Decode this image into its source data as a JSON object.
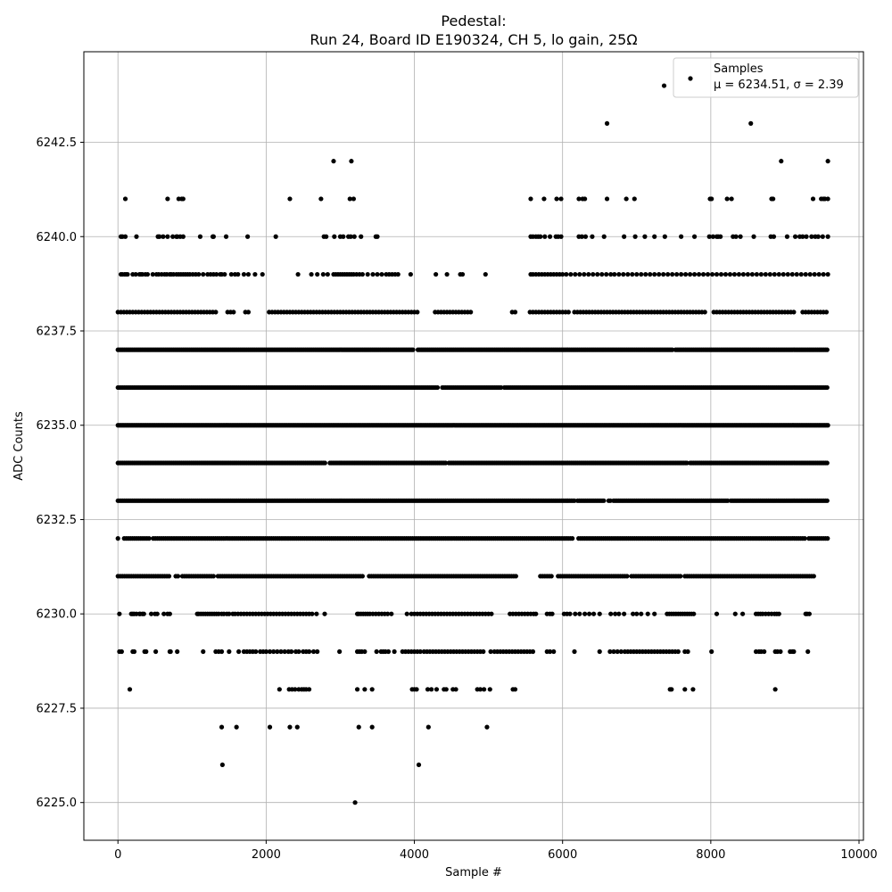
{
  "chart_data": {
    "type": "scatter",
    "title": "Pedestal:",
    "subtitle": "Run 24, Board ID E190324, CH 5, lo gain, 25Ω",
    "xlabel": "Sample #",
    "ylabel": "ADC Counts",
    "xlim": [
      -460,
      10060
    ],
    "ylim": [
      6224.0,
      6244.9
    ],
    "x_ticks": [
      0,
      2000,
      4000,
      6000,
      8000,
      10000
    ],
    "x_tick_labels": [
      "0",
      "2000",
      "4000",
      "6000",
      "8000",
      "10000"
    ],
    "y_ticks": [
      6225.0,
      6227.5,
      6230.0,
      6232.5,
      6235.0,
      6237.5,
      6240.0,
      6242.5
    ],
    "y_tick_labels": [
      "6225.0",
      "6227.5",
      "6230.0",
      "6232.5",
      "6235.0",
      "6237.5",
      "6240.0",
      "6242.5"
    ],
    "grid": true,
    "legend": {
      "placement": "top-right",
      "label_line1": "Samples",
      "label_line2": "μ = 6234.51, σ = 2.39"
    },
    "marker_color": "#000000",
    "series": [
      {
        "name": "Samples",
        "levels": [
          {
            "y": 6244,
            "x": [
              7370
            ]
          },
          {
            "y": 6243,
            "x": [
              6600,
              8540
            ]
          },
          {
            "y": 6242,
            "x": [
              2910,
              3150,
              8950,
              9580
            ]
          },
          {
            "y": 6241,
            "x": [
              100,
              670,
              820,
              860,
              880,
              2320,
              2740,
              3130,
              3180,
              5570,
              5750,
              5920,
              5980,
              6220,
              6270,
              6300,
              6600,
              6860,
              6970,
              7990,
              8010,
              8220,
              8280,
              8820,
              8840,
              9380,
              9490,
              9520,
              9540,
              9580
            ]
          },
          {
            "y": 6240,
            "x": [
              40,
              60,
              100,
              250,
              540,
              560,
              610,
              670,
              740,
              790,
              800,
              840,
              880,
              1110,
              1280,
              1290,
              1460,
              1750,
              2130,
              2780,
              2810,
              2920,
              3000,
              3040,
              3110,
              3140,
              3190,
              3280,
              3480,
              3500,
              5570,
              5600,
              5640,
              5670,
              5700,
              5760,
              5830,
              5910,
              5940,
              5980,
              6220,
              6260,
              6310,
              6400,
              6560,
              6830,
              6980,
              7110,
              7240,
              7380,
              7600,
              7780,
              7980,
              8030,
              8080,
              8100,
              8130,
              8300,
              8340,
              8400,
              8580,
              8810,
              8850,
              9030,
              9140,
              9200,
              9240,
              9290,
              9360,
              9410,
              9450,
              9510,
              9580
            ]
          },
          {
            "y": 6239,
            "x": [
              40,
              60,
              90,
              110,
              130,
              200,
              240,
              290,
              310,
              330,
              370,
              400,
              470,
              520,
              550,
              590,
              630,
              660,
              700,
              720,
              750,
              790,
              820,
              850,
              880,
              910,
              940,
              970,
              1010,
              1050,
              1090,
              1150,
              1210,
              1250,
              1290,
              1330,
              1380,
              1400,
              1440,
              1530,
              1580,
              1620,
              1700,
              1760,
              1850,
              1950,
              2430,
              2610,
              2690,
              2770,
              2830,
              2910,
              2940,
              2970,
              3000,
              3030,
              3060,
              3090,
              3120,
              3150,
              3180,
              3220,
              3260,
              3300,
              3370,
              3440,
              3500,
              3560,
              3620,
              3660,
              3700,
              3740,
              3780,
              3950,
              4290,
              4440,
              4620,
              4650,
              4960,
              5570,
              5600,
              5640,
              5680,
              5720,
              5760,
              5800,
              5840,
              5880,
              5920,
              5960,
              6000,
              6050,
              6110,
              6170,
              6230,
              6290,
              6350,
              6410,
              6470,
              6530,
              6590,
              6650,
              6700,
              6760,
              6820,
              6880,
              6940,
              7000,
              7060,
              7120,
              7180,
              7240,
              7300,
              7360,
              7420,
              7480,
              7540,
              7600,
              7660,
              7720,
              7780,
              7840,
              7900,
              7960,
              8020,
              8080,
              8140,
              8200,
              8260,
              8320,
              8380,
              8440,
              8500,
              8560,
              8620,
              8680,
              8740,
              8800,
              8860,
              8920,
              8980,
              9040,
              9100,
              9160,
              9220,
              9280,
              9340,
              9400,
              9460,
              9520,
              9580
            ]
          },
          {
            "y": 6238,
            "step": 40,
            "gaps": [
              [
                1340,
                1440
              ],
              [
                1600,
                1700
              ],
              [
                1800,
                2000
              ],
              [
                4050,
                4250
              ],
              [
                4800,
                5300
              ],
              [
                5400,
                5550
              ],
              [
                6100,
                6150
              ],
              [
                7950,
                8000
              ],
              [
                9150,
                9200
              ]
            ]
          },
          {
            "y": 6237,
            "step": 22,
            "gaps": [
              [
                4000,
                4030
              ],
              [
                7500,
                7520
              ]
            ]
          },
          {
            "y": 6236,
            "step": 22,
            "gaps": [
              [
                4330,
                4360
              ],
              [
                5180,
                5200
              ]
            ]
          },
          {
            "y": 6235,
            "step": 20,
            "gaps": []
          },
          {
            "y": 6234,
            "step": 22,
            "gaps": [
              [
                2810,
                2840
              ],
              [
                4430,
                4460
              ],
              [
                7700,
                7720
              ]
            ]
          },
          {
            "y": 6233,
            "step": 22,
            "gaps": [
              [
                6170,
                6200
              ],
              [
                6560,
                6600
              ],
              [
                6650,
                6680
              ],
              [
                8240,
                8270
              ]
            ]
          },
          {
            "y": 6232,
            "step": 28,
            "gaps": [
              [
                20,
                60
              ],
              [
                430,
                460
              ],
              [
                6150,
                6200
              ],
              [
                9270,
                9300
              ]
            ]
          },
          {
            "y": 6231,
            "step": 30,
            "gaps": [
              [
                720,
                760
              ],
              [
                820,
                850
              ],
              [
                1300,
                1330
              ],
              [
                3320,
                3360
              ],
              [
                5400,
                5680
              ],
              [
                5880,
                5910
              ],
              [
                6880,
                6910
              ],
              [
                7600,
                7630
              ],
              [
                9400,
                9600
              ]
            ]
          },
          {
            "y": 6230,
            "x": [
              20,
              180,
              200,
              220,
              250,
              290,
              300,
              330,
              350,
              450,
              500,
              530,
              620,
              670,
              700,
              1070,
              1090,
              1120,
              1150,
              1180,
              1210,
              1240,
              1270,
              1300,
              1330,
              1360,
              1400,
              1430,
              1470,
              1500,
              1550,
              1580,
              1620,
              1660,
              1700,
              1740,
              1780,
              1820,
              1860,
              1900,
              1940,
              1980,
              2020,
              2060,
              2100,
              2140,
              2180,
              2220,
              2260,
              2300,
              2340,
              2380,
              2420,
              2460,
              2500,
              2540,
              2580,
              2620,
              2680,
              2790,
              3230,
              3250,
              3280,
              3310,
              3340,
              3370,
              3400,
              3440,
              3480,
              3520,
              3560,
              3600,
              3640,
              3690,
              3900,
              3960,
              4000,
              4040,
              4080,
              4120,
              4160,
              4200,
              4240,
              4280,
              4320,
              4360,
              4400,
              4440,
              4480,
              4520,
              4560,
              4600,
              4640,
              4680,
              4720,
              4760,
              4800,
              4840,
              4880,
              4920,
              4960,
              5000,
              5040,
              5290,
              5330,
              5370,
              5410,
              5450,
              5490,
              5530,
              5570,
              5610,
              5640,
              5790,
              5830,
              5860,
              6020,
              6060,
              6100,
              6170,
              6230,
              6300,
              6360,
              6420,
              6500,
              6650,
              6710,
              6760,
              6830,
              6950,
              7000,
              7060,
              7150,
              7240,
              7410,
              7440,
              7470,
              7500,
              7530,
              7560,
              7590,
              7620,
              7650,
              7680,
              7710,
              7740,
              7770,
              8080,
              8330,
              8430,
              8610,
              8640,
              8670,
              8700,
              8740,
              8780,
              8820,
              8860,
              8890,
              8920,
              9280,
              9300,
              9330
            ]
          },
          {
            "y": 6229,
            "x": [
              20,
              50,
              200,
              220,
              360,
              380,
              510,
              700,
              710,
              800,
              1150,
              1320,
              1360,
              1400,
              1500,
              1630,
              1700,
              1740,
              1780,
              1820,
              1860,
              1920,
              1960,
              2000,
              2050,
              2100,
              2150,
              2200,
              2250,
              2300,
              2340,
              2400,
              2440,
              2500,
              2540,
              2580,
              2640,
              2690,
              2990,
              3230,
              3260,
              3290,
              3330,
              3490,
              3550,
              3580,
              3610,
              3650,
              3730,
              3840,
              3880,
              3920,
              3960,
              4000,
              4040,
              4080,
              4130,
              4170,
              4210,
              4250,
              4290,
              4330,
              4370,
              4410,
              4450,
              4490,
              4530,
              4570,
              4610,
              4650,
              4690,
              4730,
              4770,
              4810,
              4850,
              4890,
              4930,
              5030,
              5080,
              5120,
              5160,
              5200,
              5240,
              5280,
              5320,
              5360,
              5400,
              5440,
              5480,
              5520,
              5560,
              5600,
              5790,
              5830,
              5880,
              6160,
              6500,
              6640,
              6690,
              6740,
              6790,
              6840,
              6880,
              6920,
              6960,
              7000,
              7040,
              7080,
              7120,
              7160,
              7200,
              7240,
              7280,
              7320,
              7360,
              7400,
              7440,
              7480,
              7520,
              7560,
              7650,
              7690,
              8010,
              8610,
              8650,
              8680,
              8720,
              8870,
              8900,
              8940,
              9070,
              9100,
              9120,
              9310
            ]
          },
          {
            "y": 6228,
            "x": [
              160,
              2180,
              2310,
              2350,
              2390,
              2440,
              2480,
              2510,
              2540,
              2580,
              3230,
              3330,
              3430,
              3970,
              4000,
              4030,
              4180,
              4230,
              4300,
              4400,
              4430,
              4520,
              4560,
              4850,
              4890,
              4940,
              5020,
              5330,
              5360,
              7450,
              7470,
              7650,
              7760,
              8870
            ]
          },
          {
            "y": 6227,
            "x": [
              1400,
              1600,
              2050,
              2320,
              2420,
              3250,
              3430,
              4190,
              4980
            ]
          },
          {
            "y": 6226,
            "x": [
              1410,
              4060
            ]
          },
          {
            "y": 6225,
            "x": [
              3200
            ]
          }
        ]
      }
    ]
  }
}
